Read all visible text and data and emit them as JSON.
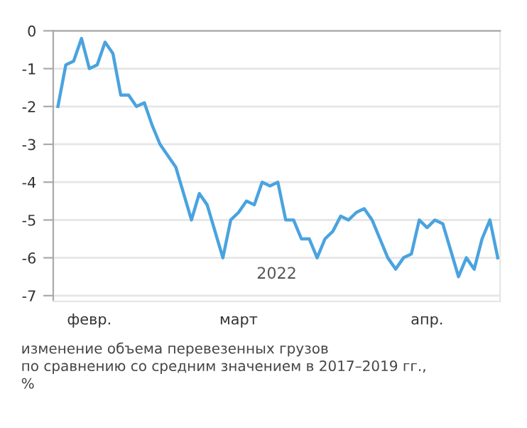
{
  "chart_data": {
    "type": "line",
    "categories": [
      null,
      null,
      null,
      null,
      "февр.",
      null,
      null,
      null,
      null,
      null,
      null,
      null,
      null,
      null,
      null,
      null,
      null,
      null,
      null,
      null,
      null,
      null,
      null,
      "март",
      null,
      null,
      null,
      null,
      null,
      null,
      null,
      null,
      null,
      null,
      null,
      null,
      null,
      null,
      null,
      null,
      null,
      null,
      null,
      null,
      null,
      null,
      null,
      "апр.",
      null,
      null,
      null,
      null,
      null,
      null,
      null,
      null,
      null
    ],
    "series": [
      {
        "color": "#4aa3df",
        "values": [
          -2.0,
          -0.9,
          -0.8,
          -0.2,
          -1.0,
          -0.9,
          -0.3,
          -0.6,
          -1.7,
          -1.7,
          -2.0,
          -1.9,
          -2.5,
          -3.0,
          -3.3,
          -3.6,
          -4.3,
          -5.0,
          -4.3,
          -4.6,
          -5.3,
          -6.0,
          -5.0,
          -4.8,
          -4.5,
          -4.6,
          -4.0,
          -4.1,
          -4.0,
          -5.0,
          -5.0,
          -5.5,
          -5.5,
          -6.0,
          -5.5,
          -5.3,
          -4.9,
          -5.0,
          -4.8,
          -4.7,
          -5.0,
          -5.5,
          -6.0,
          -6.3,
          -6.0,
          -5.9,
          -5.0,
          -5.2,
          -5.0,
          -5.1,
          -5.8,
          -6.5,
          -6.0,
          -6.3,
          -5.5,
          -5.0,
          -6.0
        ]
      }
    ],
    "ylim": [
      -7.15,
      0
    ],
    "yticks": [
      0,
      -1,
      -2,
      -3,
      -4,
      -5,
      -6,
      -7
    ],
    "grid": "y",
    "annotations": [
      "2022",
      "изменение объема перевезенных грузов\nпо сравнению со средним значением в 2017–2019 гг.,\n%"
    ],
    "line_style": "solid"
  }
}
